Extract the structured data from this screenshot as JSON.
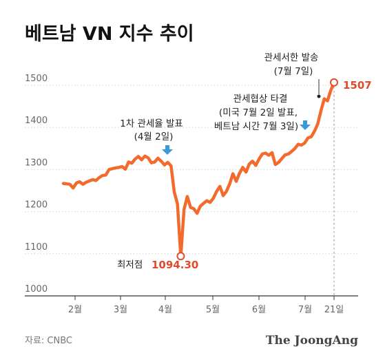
{
  "title": "베트남 VN 지수 추이",
  "source": "자료: CNBC",
  "brand": "The JoongAng",
  "colors": {
    "line": "#f26b2d",
    "accent": "#e04b2b",
    "arrow": "#3a9ad9",
    "axis": "#333333",
    "grid": "#d0d0d0"
  },
  "chart_data": {
    "type": "line",
    "title": "베트남 VN 지수 추이",
    "xlabel": "",
    "ylabel": "",
    "ylim": [
      1000,
      1500
    ],
    "yticks": [
      1000,
      1100,
      1200,
      1300,
      1400,
      1500
    ],
    "xtick_labels": [
      "2월",
      "3월",
      "4월",
      "5월",
      "6월",
      "7월",
      "21일"
    ],
    "grid": "horizontal dotted",
    "legend": "none",
    "series": [
      {
        "values": [
          1267,
          1266,
          1265,
          1256,
          1268,
          1271,
          1265,
          1270,
          1273,
          1276,
          1274,
          1281,
          1286,
          1287,
          1300,
          1302,
          1304,
          1305,
          1307,
          1301,
          1318,
          1315,
          1325,
          1331,
          1323,
          1332,
          1328,
          1316,
          1318,
          1327,
          1320,
          1311,
          1317,
          1309,
          1247,
          1218,
          1094.3,
          1205,
          1236,
          1210,
          1207,
          1196,
          1213,
          1220,
          1226,
          1222,
          1232,
          1248,
          1260,
          1238,
          1248,
          1266,
          1290,
          1272,
          1291,
          1305,
          1294,
          1313,
          1320,
          1310,
          1325,
          1337,
          1339,
          1334,
          1340,
          1312,
          1317,
          1326,
          1335,
          1337,
          1343,
          1350,
          1360,
          1358,
          1363,
          1375,
          1378,
          1391,
          1408,
          1440,
          1468,
          1463,
          1488,
          1507
        ]
      }
    ],
    "annotations": {
      "low_label": "최저점",
      "low_value": "1094.30",
      "end_value": "1507",
      "event1_line1": "1차 관세율 발표",
      "event1_line2": "(4월 2일)",
      "event2_line1": "관세협상 타결",
      "event2_line2": "(미국 7월 2일 발표,",
      "event2_line3": "베트남 시간 7월 3일)",
      "event3_line1": "관세서한 발송",
      "event3_line2": "(7월 7일)"
    }
  }
}
